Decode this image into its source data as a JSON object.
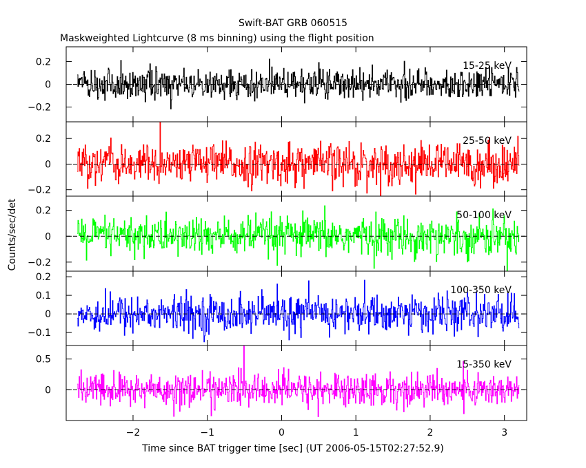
{
  "chart_data": {
    "type": "line",
    "title": "Swift-BAT GRB 060515",
    "subtitle": "Maskweighted Lightcurve (8 ms binning) using the flight position",
    "xlabel": "Time since BAT trigger time [sec] (UT 2006-05-15T02:27:52.9)",
    "ylabel": "Counts/sec/det",
    "xlim": [
      -2.9,
      3.3
    ],
    "x_range_of_data": [
      -2.75,
      3.2
    ],
    "bin_width": 0.008,
    "xticks": [
      -2,
      -1,
      0,
      1,
      2,
      3
    ],
    "grid": false,
    "zero_line": "dashed",
    "panels": [
      {
        "name": "15-25 keV",
        "color": "#000000",
        "ylim": [
          -0.33,
          0.33
        ],
        "yticks": [
          0.2,
          0,
          -0.2
        ],
        "ytick_labels": [
          "0.2",
          "0",
          "−0.2"
        ],
        "noise_sigma": 0.07,
        "mean": 0.0
      },
      {
        "name": "25-50 keV",
        "color": "#ff0000",
        "ylim": [
          -0.25,
          0.33
        ],
        "yticks": [
          0.2,
          0,
          -0.2
        ],
        "ytick_labels": [
          "0.2",
          "0",
          "−0.2"
        ],
        "noise_sigma": 0.08,
        "mean": 0.0
      },
      {
        "name": "50-100 keV",
        "color": "#00ff00",
        "ylim": [
          -0.27,
          0.31
        ],
        "yticks": [
          0.2,
          0,
          -0.2
        ],
        "ytick_labels": [
          "0.2",
          "0",
          "−0.2"
        ],
        "noise_sigma": 0.075,
        "mean": 0.0
      },
      {
        "name": "100-350 keV",
        "color": "#0000ff",
        "ylim": [
          -0.17,
          0.23
        ],
        "yticks": [
          0.2,
          0.1,
          0,
          -0.1
        ],
        "ytick_labels": [
          "0.2",
          "0.1",
          "0",
          "−0.1"
        ],
        "noise_sigma": 0.05,
        "mean": 0.0
      },
      {
        "name": "15-350 keV",
        "color": "#ff00ff",
        "ylim": [
          -0.5,
          0.72
        ],
        "yticks": [
          0.5,
          0
        ],
        "ytick_labels": [
          "0.5",
          "0"
        ],
        "noise_sigma": 0.14,
        "mean": 0.0
      }
    ]
  }
}
